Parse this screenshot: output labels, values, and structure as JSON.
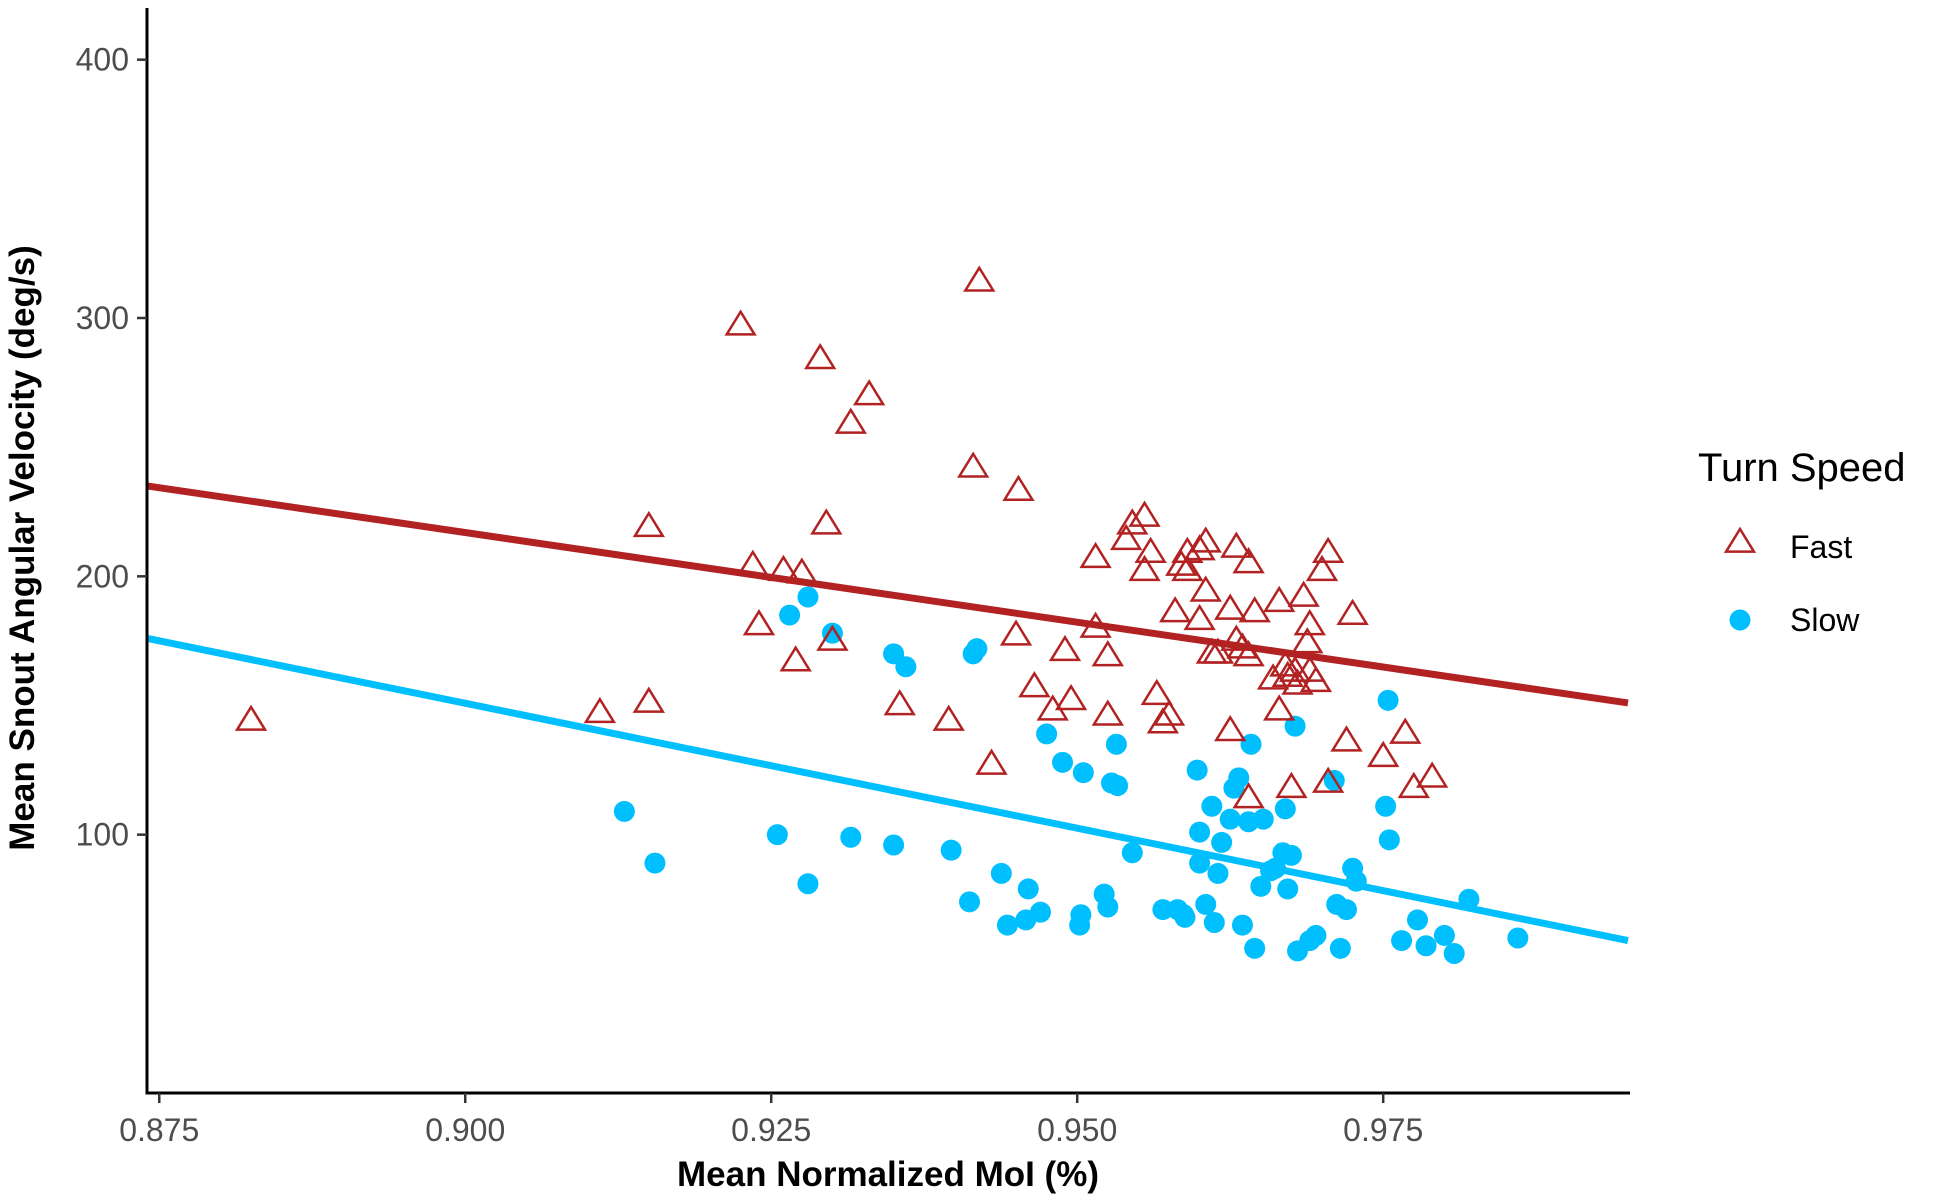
{
  "chart_data": {
    "type": "scatter",
    "xlabel": "Mean Normalized MoI (%)",
    "ylabel": "Mean Snout Angular Velocity (deg/s)",
    "xlim": [
      0.874,
      0.995
    ],
    "ylim": [
      0,
      420
    ],
    "xticks": [
      "0.875",
      "0.900",
      "0.925",
      "0.950",
      "0.975"
    ],
    "yticks": [
      "100",
      "200",
      "300",
      "400"
    ],
    "grid": false,
    "legend": {
      "title": "Turn Speed",
      "position": "right"
    },
    "series": [
      {
        "name": "Fast",
        "marker": "open-triangle",
        "color": "#B22222",
        "fit": {
          "x": [
            0.874,
            0.995
          ],
          "y": [
            235,
            151
          ]
        },
        "points": [
          [
            0.8825,
            144
          ],
          [
            0.911,
            147
          ],
          [
            0.915,
            151
          ],
          [
            0.915,
            219
          ],
          [
            0.9225,
            297
          ],
          [
            0.9235,
            204
          ],
          [
            0.924,
            181
          ],
          [
            0.926,
            202
          ],
          [
            0.927,
            167
          ],
          [
            0.9275,
            201
          ],
          [
            0.929,
            284
          ],
          [
            0.9295,
            220
          ],
          [
            0.93,
            175
          ],
          [
            0.9315,
            259
          ],
          [
            0.933,
            270
          ],
          [
            0.9355,
            150
          ],
          [
            0.9395,
            144
          ],
          [
            0.9415,
            242
          ],
          [
            0.942,
            314
          ],
          [
            0.943,
            127
          ],
          [
            0.945,
            177
          ],
          [
            0.9452,
            233
          ],
          [
            0.9465,
            157
          ],
          [
            0.948,
            148
          ],
          [
            0.949,
            171
          ],
          [
            0.9495,
            152
          ],
          [
            0.9515,
            207
          ],
          [
            0.9515,
            180
          ],
          [
            0.9525,
            169
          ],
          [
            0.9525,
            146
          ],
          [
            0.954,
            214
          ],
          [
            0.9545,
            220
          ],
          [
            0.9555,
            202
          ],
          [
            0.9555,
            223
          ],
          [
            0.956,
            209
          ],
          [
            0.9565,
            154
          ],
          [
            0.957,
            143
          ],
          [
            0.9575,
            146
          ],
          [
            0.958,
            186
          ],
          [
            0.9585,
            204
          ],
          [
            0.959,
            209
          ],
          [
            0.959,
            202
          ],
          [
            0.96,
            183
          ],
          [
            0.96,
            210
          ],
          [
            0.9605,
            213
          ],
          [
            0.9605,
            194
          ],
          [
            0.961,
            170
          ],
          [
            0.9615,
            170
          ],
          [
            0.9625,
            187
          ],
          [
            0.9625,
            140
          ],
          [
            0.963,
            175
          ],
          [
            0.963,
            211
          ],
          [
            0.9635,
            172
          ],
          [
            0.964,
            205
          ],
          [
            0.964,
            169
          ],
          [
            0.964,
            114
          ],
          [
            0.9645,
            186
          ],
          [
            0.966,
            160
          ],
          [
            0.9665,
            190
          ],
          [
            0.9665,
            148
          ],
          [
            0.967,
            165
          ],
          [
            0.9672,
            161
          ],
          [
            0.9675,
            118
          ],
          [
            0.9678,
            163
          ],
          [
            0.968,
            158
          ],
          [
            0.9685,
            192
          ],
          [
            0.9688,
            174
          ],
          [
            0.969,
            181
          ],
          [
            0.969,
            163
          ],
          [
            0.9695,
            159
          ],
          [
            0.97,
            202
          ],
          [
            0.9705,
            209
          ],
          [
            0.9705,
            120
          ],
          [
            0.972,
            136
          ],
          [
            0.9725,
            185
          ],
          [
            0.975,
            130
          ],
          [
            0.9768,
            139
          ],
          [
            0.9775,
            118
          ],
          [
            0.979,
            122
          ]
        ]
      },
      {
        "name": "Slow",
        "marker": "filled-circle",
        "color": "#00BFFF",
        "fit": {
          "x": [
            0.874,
            0.995
          ],
          "y": [
            176,
            59
          ]
        },
        "points": [
          [
            0.913,
            109
          ],
          [
            0.9155,
            89
          ],
          [
            0.9255,
            100
          ],
          [
            0.9265,
            185
          ],
          [
            0.928,
            81
          ],
          [
            0.928,
            192
          ],
          [
            0.93,
            178
          ],
          [
            0.9315,
            99
          ],
          [
            0.935,
            170
          ],
          [
            0.935,
            96
          ],
          [
            0.936,
            165
          ],
          [
            0.9397,
            94
          ],
          [
            0.9412,
            74
          ],
          [
            0.9415,
            170
          ],
          [
            0.9418,
            172
          ],
          [
            0.9438,
            85
          ],
          [
            0.9443,
            65
          ],
          [
            0.9458,
            67
          ],
          [
            0.946,
            79
          ],
          [
            0.947,
            70
          ],
          [
            0.9475,
            139
          ],
          [
            0.9488,
            128
          ],
          [
            0.9502,
            65
          ],
          [
            0.9503,
            69
          ],
          [
            0.9505,
            124
          ],
          [
            0.9522,
            77
          ],
          [
            0.9525,
            72
          ],
          [
            0.9528,
            120
          ],
          [
            0.9532,
            135
          ],
          [
            0.9533,
            119
          ],
          [
            0.9545,
            93
          ],
          [
            0.957,
            71
          ],
          [
            0.9582,
            71
          ],
          [
            0.9587,
            69
          ],
          [
            0.9588,
            68
          ],
          [
            0.9598,
            125
          ],
          [
            0.96,
            89
          ],
          [
            0.96,
            101
          ],
          [
            0.9605,
            73
          ],
          [
            0.961,
            111
          ],
          [
            0.9612,
            66
          ],
          [
            0.9615,
            85
          ],
          [
            0.9618,
            97
          ],
          [
            0.9625,
            106
          ],
          [
            0.9628,
            118
          ],
          [
            0.9632,
            122
          ],
          [
            0.9635,
            65
          ],
          [
            0.964,
            105
          ],
          [
            0.9642,
            135
          ],
          [
            0.9645,
            56
          ],
          [
            0.965,
            80
          ],
          [
            0.9652,
            106
          ],
          [
            0.9658,
            86
          ],
          [
            0.9662,
            87
          ],
          [
            0.9668,
            93
          ],
          [
            0.967,
            110
          ],
          [
            0.9672,
            79
          ],
          [
            0.9675,
            92
          ],
          [
            0.9678,
            142
          ],
          [
            0.968,
            55
          ],
          [
            0.969,
            59
          ],
          [
            0.9695,
            61
          ],
          [
            0.971,
            121
          ],
          [
            0.9712,
            73
          ],
          [
            0.9715,
            56
          ],
          [
            0.972,
            71
          ],
          [
            0.9725,
            87
          ],
          [
            0.9728,
            82
          ],
          [
            0.9752,
            111
          ],
          [
            0.9754,
            152
          ],
          [
            0.9755,
            98
          ],
          [
            0.9765,
            59
          ],
          [
            0.9778,
            67
          ],
          [
            0.9785,
            57
          ],
          [
            0.98,
            61
          ],
          [
            0.9808,
            54
          ],
          [
            0.982,
            75
          ],
          [
            0.986,
            60
          ]
        ]
      }
    ]
  }
}
